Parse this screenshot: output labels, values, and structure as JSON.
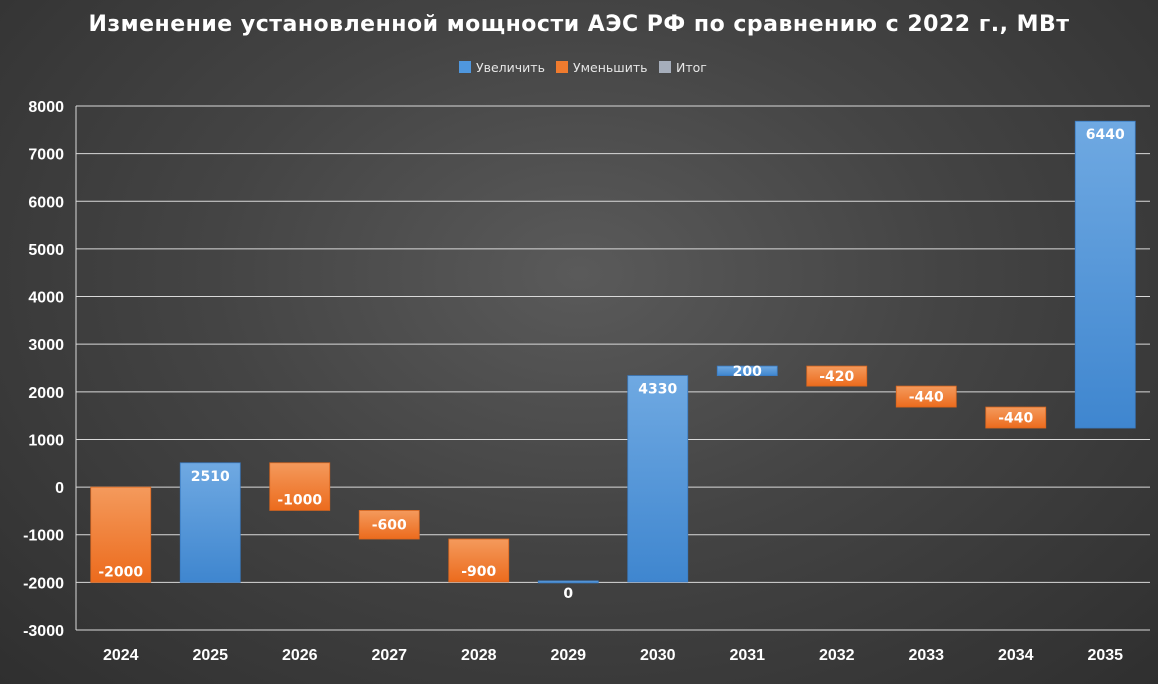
{
  "chart_data": {
    "type": "waterfall",
    "title": "Изменение установленной мощности АЭС РФ по сравнению с 2022 г., МВт",
    "legend": {
      "position": "top",
      "entries": [
        {
          "key": "increase",
          "label": "Увеличить",
          "color": "#4f97de"
        },
        {
          "key": "decrease",
          "label": "Уменьшить",
          "color": "#f07b2e"
        },
        {
          "key": "total",
          "label": "Итог",
          "color": "#a6aebb"
        }
      ]
    },
    "ylim": [
      -3000,
      8000
    ],
    "yticks": [
      -3000,
      -2000,
      -1000,
      0,
      1000,
      2000,
      3000,
      4000,
      5000,
      6000,
      7000,
      8000
    ],
    "grid": true,
    "categories": [
      "2024",
      "2025",
      "2026",
      "2027",
      "2028",
      "2029",
      "2030",
      "2031",
      "2032",
      "2033",
      "2034",
      "2035"
    ],
    "values": [
      -2000,
      2510,
      -1000,
      -600,
      -900,
      0,
      4330,
      200,
      -420,
      -440,
      -440,
      6440
    ],
    "labels": [
      "-2000",
      "2510",
      "-1000",
      "-600",
      "-900",
      "0",
      "4330",
      "200",
      "-420",
      "-440",
      "-440",
      "6440"
    ],
    "colors": {
      "increase_top": "#6fa9e2",
      "increase_bottom": "#3f86cf",
      "decrease_top": "#f49a5c",
      "decrease_bottom": "#ec6b1d"
    }
  }
}
